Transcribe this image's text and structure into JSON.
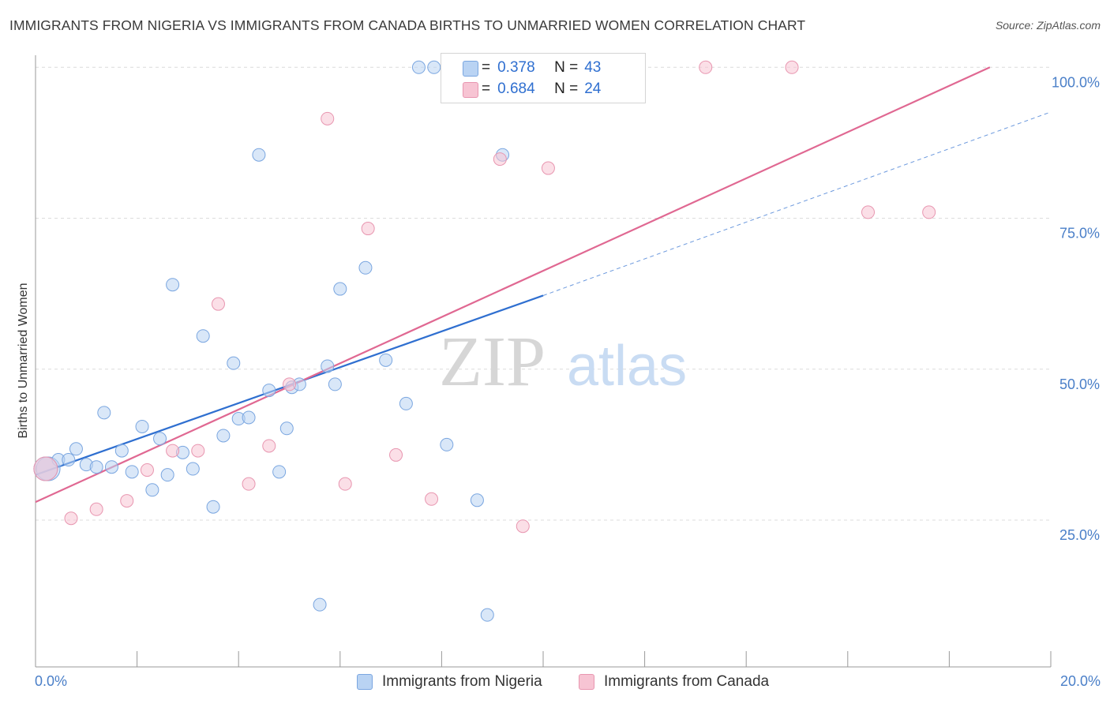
{
  "title": "IMMIGRANTS FROM NIGERIA VS IMMIGRANTS FROM CANADA BIRTHS TO UNMARRIED WOMEN CORRELATION CHART",
  "source": "Source: ZipAtlas.com",
  "watermark": {
    "zip": "ZIP",
    "atlas": "atlas"
  },
  "legend": {
    "r_label": "R =",
    "n_label": "N =",
    "rows": [
      {
        "r": "0.378",
        "n": "43"
      },
      {
        "r": "0.684",
        "n": "24"
      }
    ]
  },
  "colors": {
    "nigeria_fill": "#b9d3f3",
    "nigeria_stroke": "#7aa6e0",
    "nigeria_line": "#2f6fd0",
    "canada_fill": "#f7c4d3",
    "canada_stroke": "#e896b0",
    "canada_line": "#e06892",
    "tick_text": "#4a7fc8"
  },
  "chart_data": {
    "type": "scatter",
    "title": "IMMIGRANTS FROM NIGERIA VS IMMIGRANTS FROM CANADA BIRTHS TO UNMARRIED WOMEN CORRELATION CHART",
    "xlabel": "",
    "ylabel": "Births to Unmarried Women",
    "xlim": [
      0,
      20
    ],
    "ylim": [
      2,
      102
    ],
    "x_ticks": [
      "0.0%",
      "20.0%"
    ],
    "y_ticks": [
      {
        "value": 25,
        "label": "25.0%"
      },
      {
        "value": 50,
        "label": "50.0%"
      },
      {
        "value": 75,
        "label": "75.0%"
      },
      {
        "value": 100,
        "label": "100.0%"
      }
    ],
    "grid": true,
    "legend_position": "bottom",
    "series": [
      {
        "name": "Immigrants from Nigeria",
        "color": "#7aa6e0",
        "points": [
          [
            0.25,
            33.5
          ],
          [
            0.45,
            35.0
          ],
          [
            0.65,
            35.0
          ],
          [
            0.8,
            36.8
          ],
          [
            1.0,
            34.2
          ],
          [
            1.2,
            33.8
          ],
          [
            1.35,
            42.8
          ],
          [
            1.5,
            33.8
          ],
          [
            1.7,
            36.5
          ],
          [
            1.9,
            33.0
          ],
          [
            2.1,
            40.5
          ],
          [
            2.3,
            30.0
          ],
          [
            2.45,
            38.5
          ],
          [
            2.6,
            32.5
          ],
          [
            2.7,
            64.0
          ],
          [
            2.9,
            36.2
          ],
          [
            3.1,
            33.5
          ],
          [
            3.3,
            55.5
          ],
          [
            3.5,
            27.2
          ],
          [
            3.7,
            39.0
          ],
          [
            3.9,
            51.0
          ],
          [
            4.0,
            41.8
          ],
          [
            4.2,
            42.0
          ],
          [
            4.4,
            85.5
          ],
          [
            4.6,
            46.5
          ],
          [
            4.8,
            33.0
          ],
          [
            4.95,
            40.2
          ],
          [
            5.05,
            47.0
          ],
          [
            5.2,
            47.5
          ],
          [
            5.6,
            11.0
          ],
          [
            5.75,
            50.5
          ],
          [
            5.9,
            47.5
          ],
          [
            6.0,
            63.3
          ],
          [
            6.5,
            66.8
          ],
          [
            6.9,
            51.5
          ],
          [
            7.3,
            44.3
          ],
          [
            7.55,
            100.0
          ],
          [
            7.85,
            100.0
          ],
          [
            8.1,
            37.5
          ],
          [
            8.7,
            28.3
          ],
          [
            8.9,
            9.3
          ],
          [
            9.2,
            85.5
          ],
          [
            0.2,
            33.5
          ]
        ]
      },
      {
        "name": "Immigrants from Canada",
        "color": "#e896b0",
        "points": [
          [
            0.2,
            33.5
          ],
          [
            0.7,
            25.3
          ],
          [
            1.2,
            26.8
          ],
          [
            1.8,
            28.2
          ],
          [
            2.2,
            33.3
          ],
          [
            2.7,
            36.5
          ],
          [
            3.2,
            36.5
          ],
          [
            3.6,
            60.8
          ],
          [
            4.2,
            31.0
          ],
          [
            4.6,
            37.3
          ],
          [
            5.0,
            47.5
          ],
          [
            5.75,
            91.5
          ],
          [
            6.1,
            31.0
          ],
          [
            6.55,
            73.3
          ],
          [
            7.1,
            35.8
          ],
          [
            7.8,
            28.5
          ],
          [
            8.5,
            100.0
          ],
          [
            9.15,
            84.8
          ],
          [
            9.6,
            24.0
          ],
          [
            10.1,
            83.3
          ],
          [
            13.2,
            100.0
          ],
          [
            14.9,
            100.0
          ],
          [
            16.4,
            76.0
          ],
          [
            17.6,
            76.0
          ]
        ]
      }
    ],
    "trendlines": [
      {
        "series": "Immigrants from Nigeria",
        "x": [
          0,
          10
        ],
        "y": [
          32.5,
          62.2
        ],
        "style": "solid"
      },
      {
        "series": "Immigrants from Nigeria",
        "x": [
          10,
          20
        ],
        "y": [
          62.2,
          92.6
        ],
        "style": "dashed"
      },
      {
        "series": "Immigrants from Canada",
        "x": [
          0,
          18.8
        ],
        "y": [
          28.0,
          100.0
        ],
        "style": "solid"
      }
    ]
  }
}
